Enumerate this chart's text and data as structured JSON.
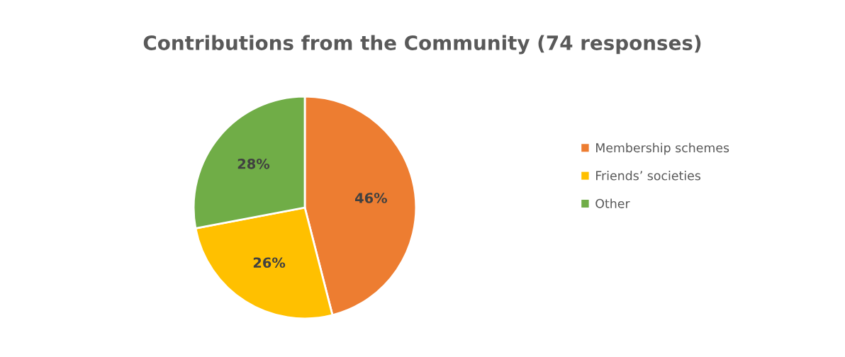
{
  "chart_data": {
    "type": "pie",
    "title": "Contributions from the Community (74 responses)",
    "categories": [
      "Membership schemes",
      "Friends’ societies",
      "Other"
    ],
    "values": [
      46,
      26,
      28
    ],
    "colors": [
      "#ed7d31",
      "#ffc000",
      "#70ad47"
    ],
    "value_labels": [
      "46%",
      "26%",
      "28%"
    ],
    "legend": "right"
  }
}
